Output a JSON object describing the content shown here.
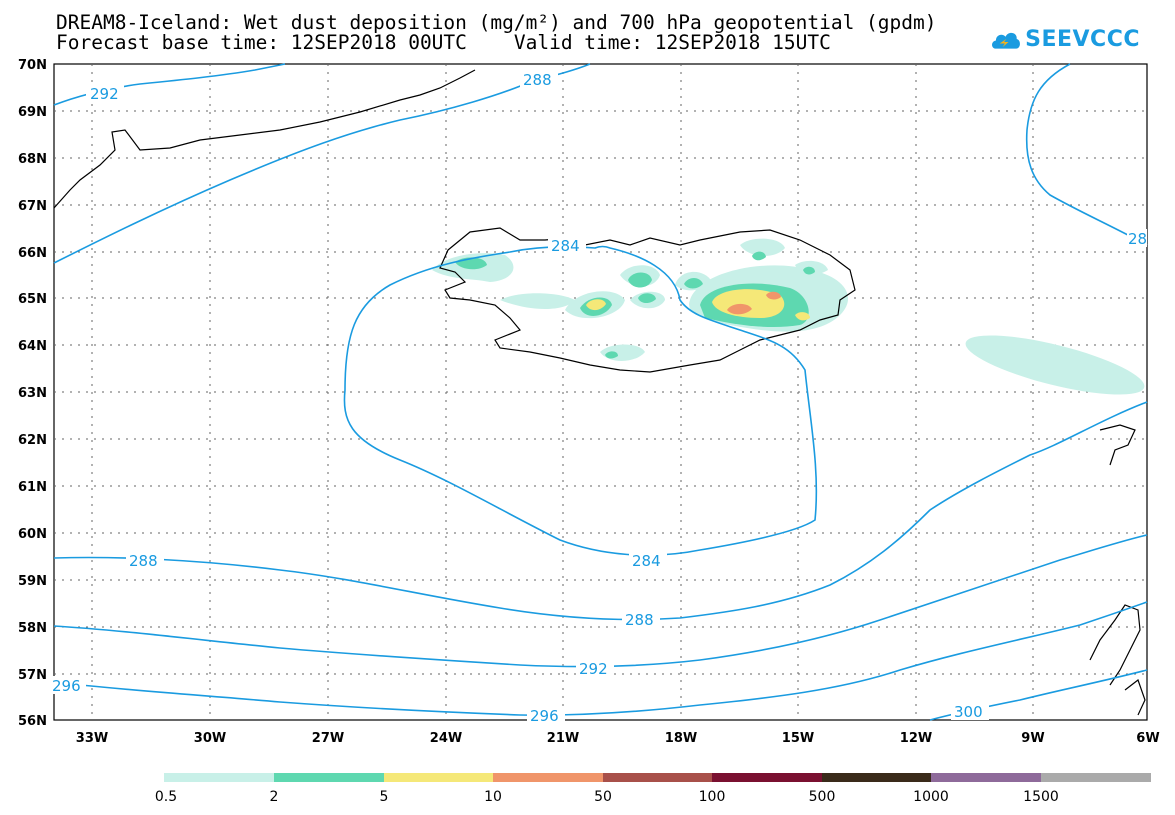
{
  "header": {
    "title_line1": "DREAM8-Iceland: Wet dust deposition (mg/m²) and 700 hPa geopotential (gpdm)",
    "title_line2": "Forecast base time: 12SEP2018 00UTC    Valid time: 12SEP2018 15UTC",
    "logo_text": "SEEVCCC"
  },
  "map": {
    "lat_labels": [
      "70N",
      "69N",
      "68N",
      "67N",
      "66N",
      "65N",
      "64N",
      "63N",
      "62N",
      "61N",
      "60N",
      "59N",
      "58N",
      "57N",
      "56N"
    ],
    "lon_labels": [
      "33W",
      "30W",
      "27W",
      "24W",
      "21W",
      "18W",
      "15W",
      "12W",
      "9W",
      "6W"
    ],
    "contour_labels": [
      "292",
      "288",
      "284",
      "284",
      "288",
      "288",
      "292",
      "296",
      "296",
      "300",
      "28"
    ]
  },
  "legend": {
    "labels": [
      "0.5",
      "2",
      "5",
      "10",
      "50",
      "100",
      "500",
      "1000",
      "1500"
    ],
    "colors": [
      "#c8f0e8",
      "#5ed8b0",
      "#f5e878",
      "#f0956a",
      "#a8504a",
      "#7a1030",
      "#3a2a1a",
      "#8e6a9a",
      "#aaaaaa"
    ]
  }
}
